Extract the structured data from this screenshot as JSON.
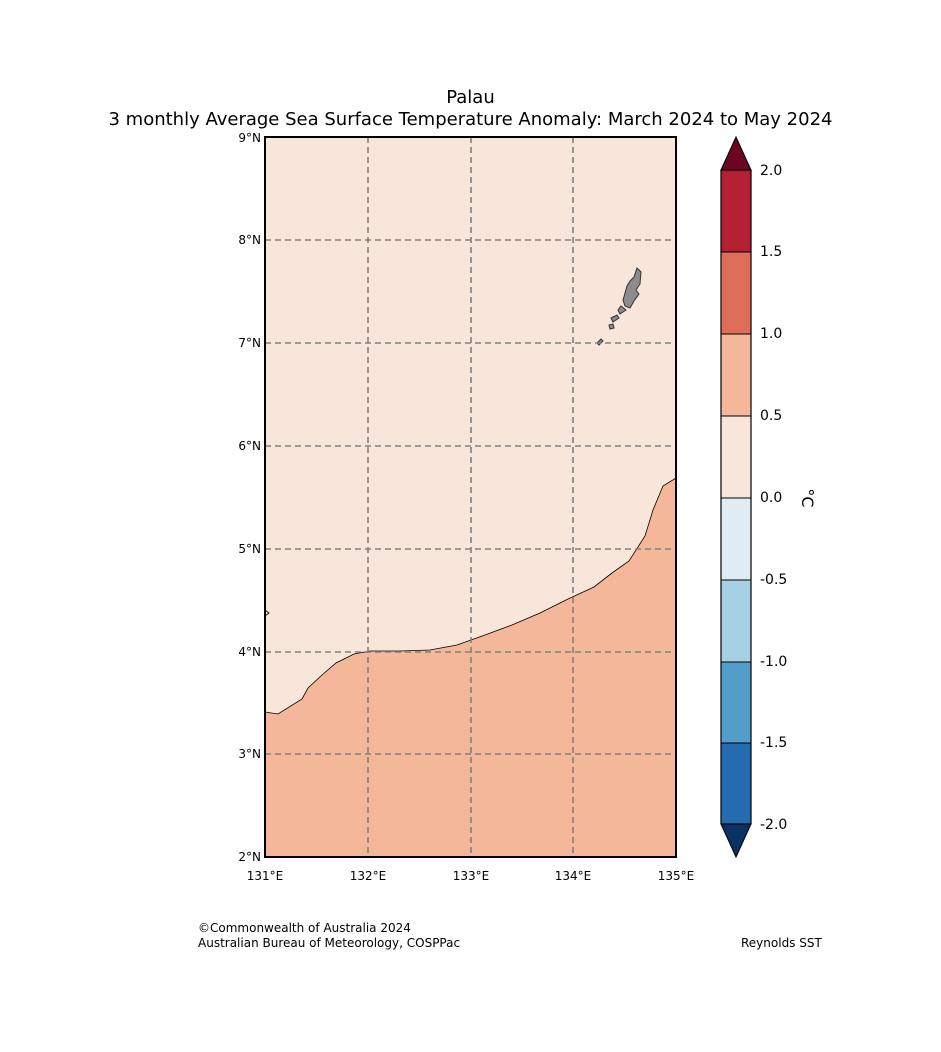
{
  "title": "Palau",
  "subtitle": "3 monthly Average Sea Surface Temperature Anomaly: March 2024 to May 2024",
  "map": {
    "lat_ticks": [
      "9°N",
      "8°N",
      "7°N",
      "6°N",
      "5°N",
      "4°N",
      "3°N",
      "2°N"
    ],
    "lon_ticks": [
      "131°E",
      "132°E",
      "133°E",
      "134°E",
      "135°E"
    ],
    "extent": {
      "lon_min": 131,
      "lon_max": 135,
      "lat_min": 2,
      "lat_max": 9
    },
    "gridlines": true,
    "land_color": "#8c8c8c",
    "regions": [
      {
        "range": "0.0 to 0.5",
        "color": "#f8e6db",
        "location": "north"
      },
      {
        "range": "0.5 to 1.0",
        "color": "#f5b799",
        "location": "south"
      }
    ]
  },
  "colorbar": {
    "unit": "°C",
    "labels": [
      "2.0",
      "1.5",
      "1.0",
      "0.5",
      "0.0",
      "-0.5",
      "-1.0",
      "-1.5",
      "-2.0"
    ],
    "colors": [
      "#b31f33",
      "#df6e59",
      "#f5b799",
      "#f8e6db",
      "#e1ebf3",
      "#a6d0e4",
      "#529ec9",
      "#246baf"
    ],
    "over_color": "#6a0523",
    "under_color": "#093162"
  },
  "footer": {
    "copyright": "©Commonwealth of Australia 2024",
    "agency": "Australian Bureau of Meteorology, COSPPac",
    "source": "Reynolds SST"
  }
}
